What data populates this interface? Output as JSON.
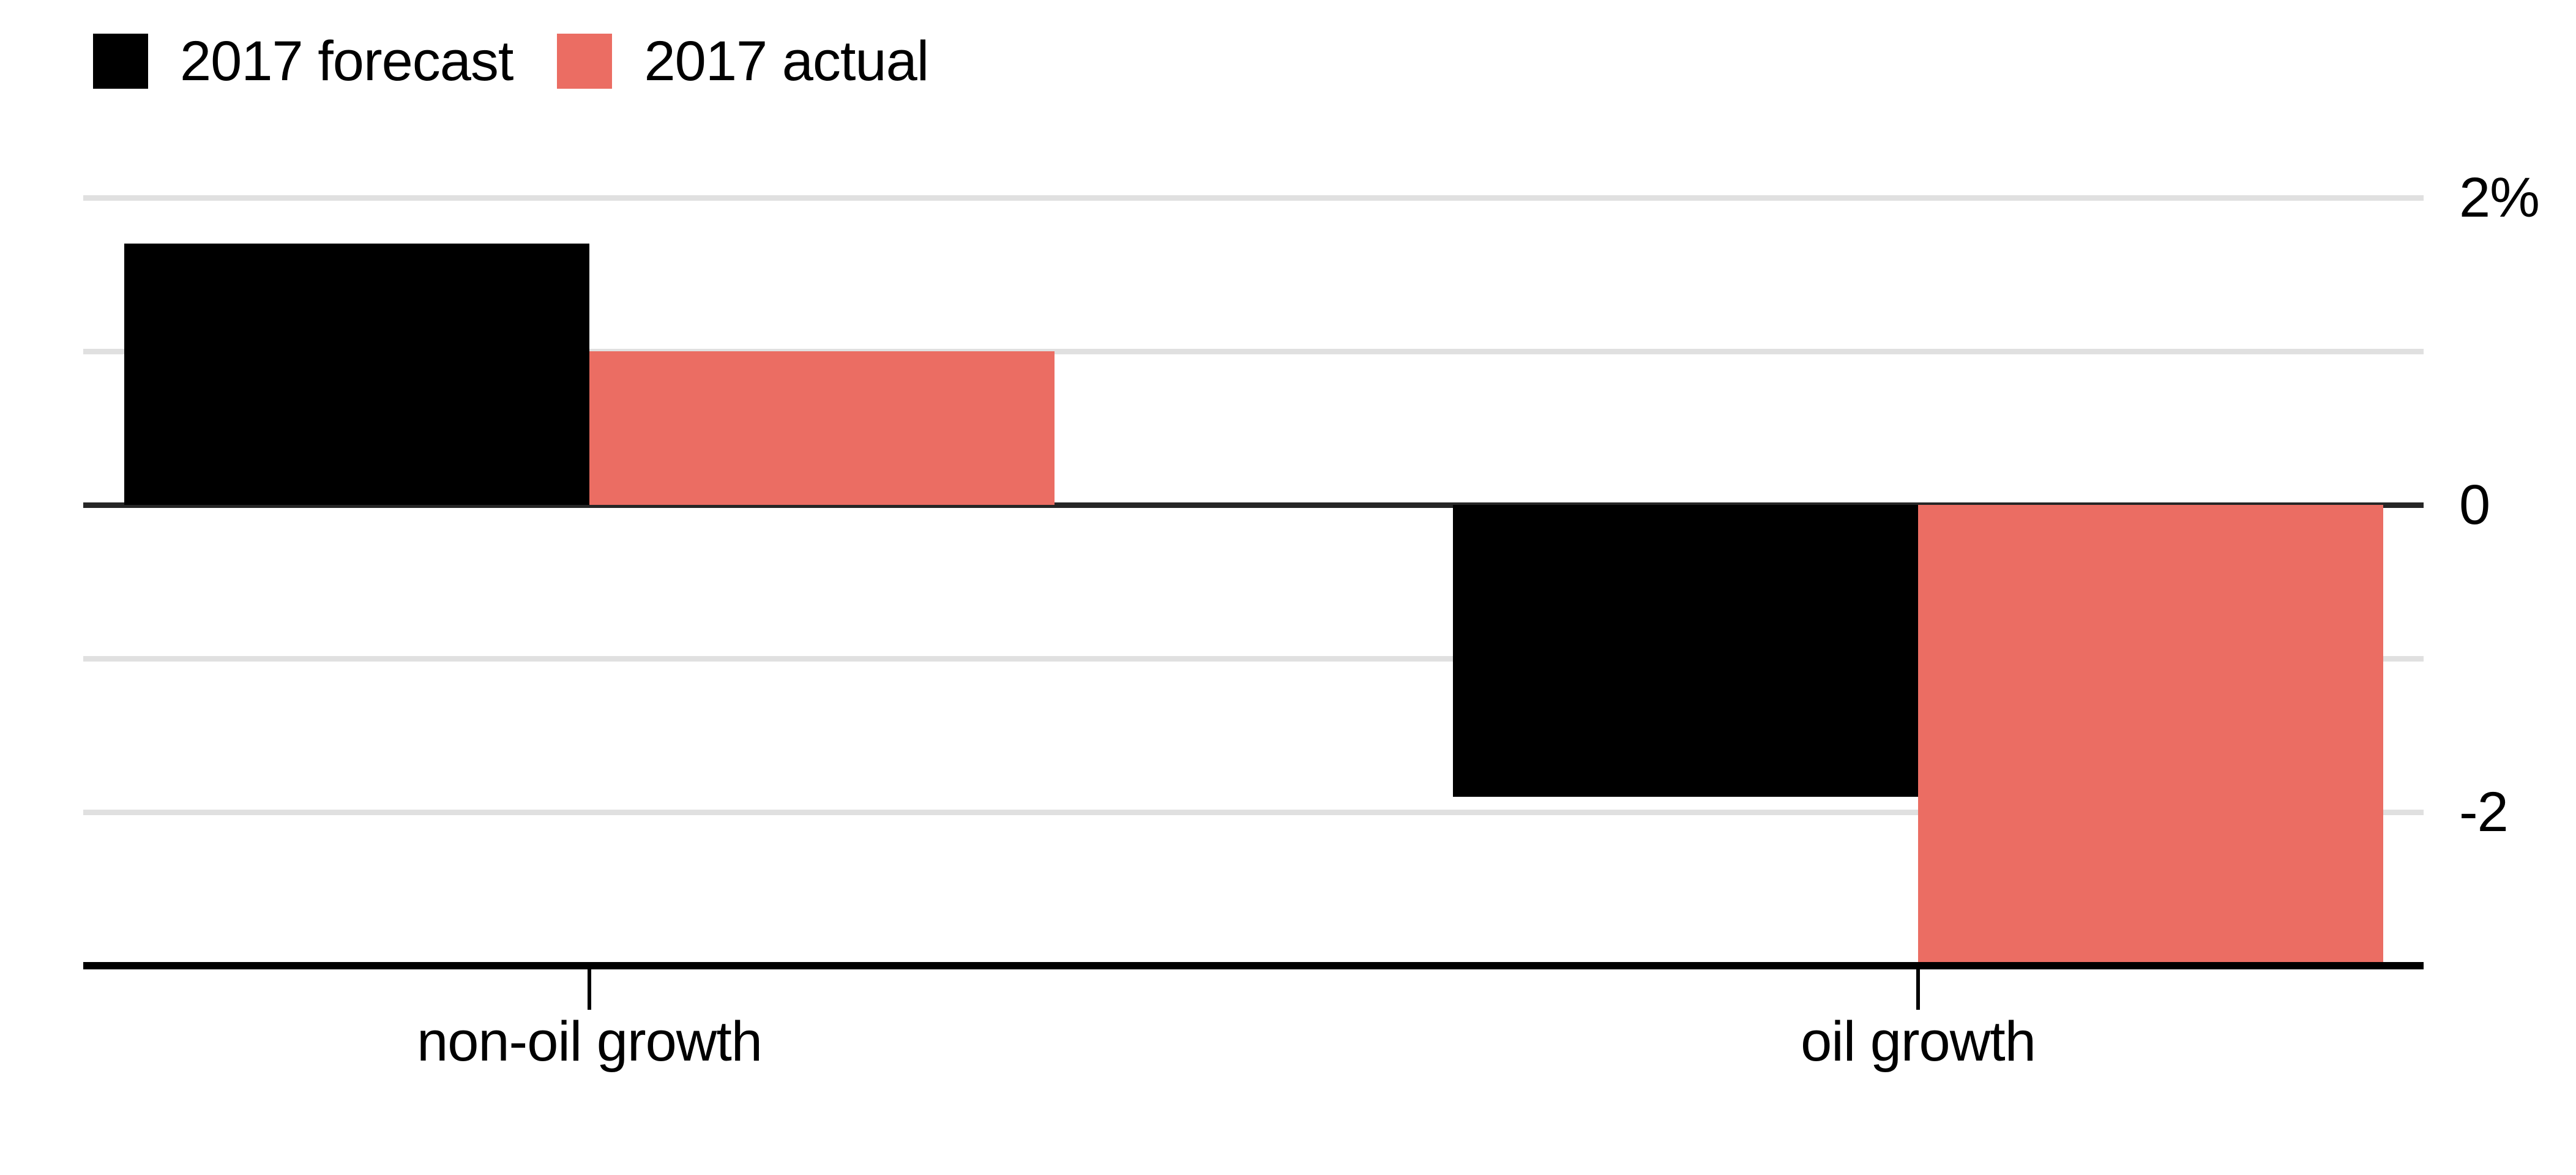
{
  "chart_data": {
    "type": "bar",
    "title": "",
    "categories": [
      "non-oil growth",
      "oil growth"
    ],
    "series": [
      {
        "name": "2017 forecast",
        "color": "#000000",
        "values": [
          1.7,
          -1.9
        ]
      },
      {
        "name": "2017 actual",
        "color": "#eb6d63",
        "values": [
          1.0,
          -3.0
        ]
      }
    ],
    "unit": "%",
    "ylim": [
      -3,
      2.4
    ],
    "y_gridlines": [
      2,
      1,
      0,
      -1,
      -2
    ],
    "y_tick_labels": [
      {
        "value": 2,
        "label": "2%"
      },
      {
        "value": 0,
        "label": "0"
      },
      {
        "value": -2,
        "label": "-2"
      }
    ],
    "grid": true,
    "zero_line": true,
    "legend_position": "top-left"
  },
  "colors": {
    "background": "#ffffff",
    "gridline": "#e0e0e0",
    "zero_line": "#262626",
    "axis": "#000000",
    "text": "#000000"
  }
}
